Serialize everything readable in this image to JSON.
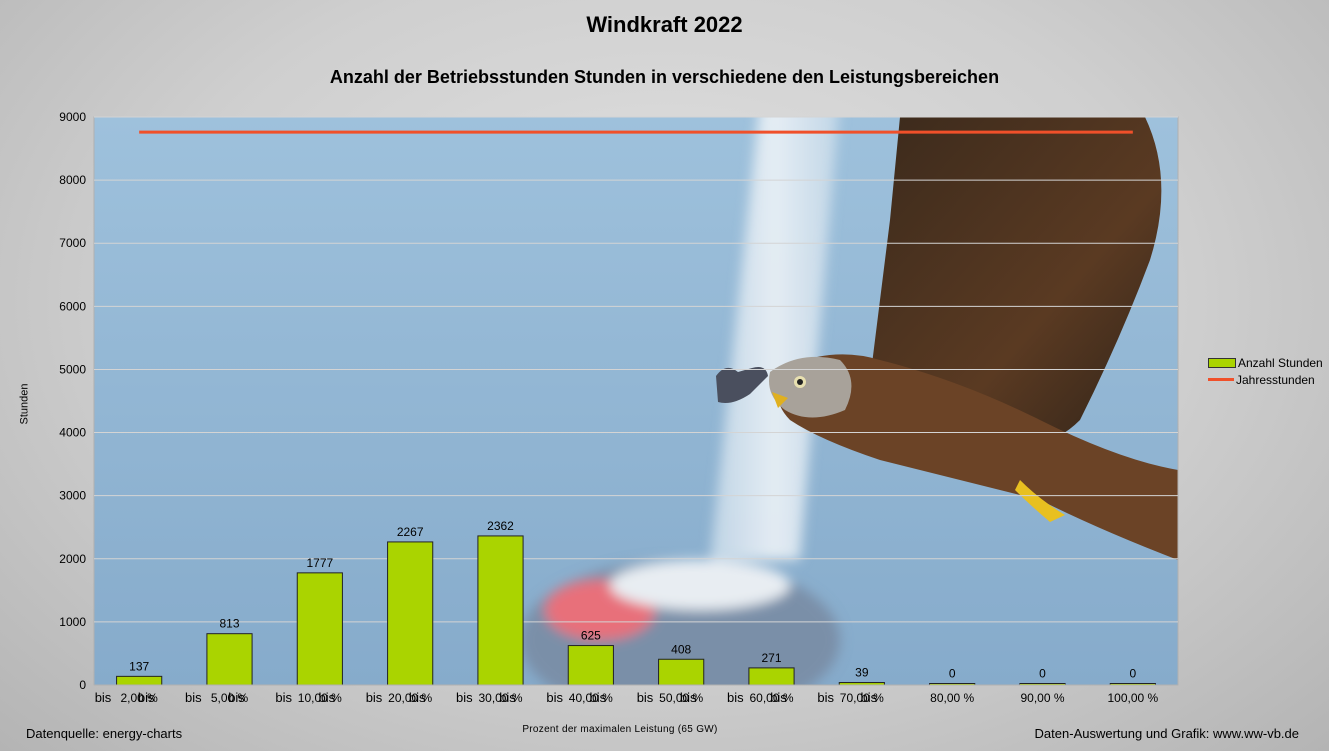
{
  "chart_data": {
    "type": "bar",
    "title": "Windkraft 2022",
    "subtitle": "Anzahl der Betriebsstunden Stunden in verschiedene den Leistungsbereichen",
    "ylabel": "Stunden",
    "xlabel": "Prozent der maximalen Leistung (65 GW)",
    "ylim": [
      0,
      9000
    ],
    "yticks": [
      0,
      1000,
      2000,
      3000,
      4000,
      5000,
      6000,
      7000,
      8000,
      9000
    ],
    "categories": [
      "2,00 %",
      "5,00 %",
      "10,00 %",
      "20,00 %",
      "30,00 %",
      "40,00 %",
      "50,00 %",
      "60,00 %",
      "70,00 %",
      "80,00 %",
      "90,00 %",
      "100,00 %"
    ],
    "category_prefix": "bis",
    "series": [
      {
        "name": "Anzahl Stunden",
        "type": "bar",
        "color": "#aad400",
        "values": [
          137,
          813,
          1777,
          2267,
          2362,
          625,
          408,
          271,
          39,
          0,
          0,
          0
        ]
      },
      {
        "name": "Jahresstunden",
        "type": "line",
        "color": "#f0502a",
        "values": [
          8760,
          8760,
          8760,
          8760,
          8760,
          8760,
          8760,
          8760,
          8760,
          8760,
          8760,
          8760
        ]
      }
    ],
    "grid": true,
    "legend_position": "right"
  },
  "footer": {
    "source": "Datenquelle: energy-charts",
    "credit": "Daten-Auswertung und Grafik: www.ww-vb.de"
  }
}
